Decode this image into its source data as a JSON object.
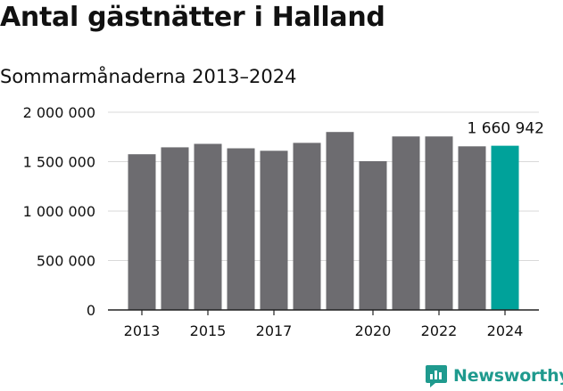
{
  "header": {
    "title": "Antal gästnätter i Halland",
    "subtitle": "Sommarmånaderna 2013–2024"
  },
  "brand": {
    "name": "Newsworthy",
    "color": "#1f9a8e"
  },
  "chart_data": {
    "type": "bar",
    "categories": [
      "2013",
      "2014",
      "2015",
      "2016",
      "2017",
      "2018",
      "2019",
      "2020",
      "2021",
      "2022",
      "2023",
      "2024"
    ],
    "values": [
      1575000,
      1645000,
      1680000,
      1635000,
      1610000,
      1690000,
      1800000,
      1505000,
      1755000,
      1755000,
      1655000,
      1660942
    ],
    "highlight_index": 11,
    "highlight_label": "1 660 942",
    "bar_color": "#6d6c70",
    "highlight_color": "#00a29a",
    "ylim": [
      0,
      2000000
    ],
    "yticks": [
      0,
      500000,
      1000000,
      1500000,
      2000000
    ],
    "ytick_labels": [
      "0",
      "500 000",
      "1 000 000",
      "1 500 000",
      "2 000 000"
    ],
    "xtick_labels": [
      "2013",
      "2015",
      "2017",
      "2020",
      "2022",
      "2024"
    ],
    "xtick_positions": [
      "2013",
      "2015",
      "2017",
      "2020",
      "2022",
      "2024"
    ],
    "grid": true,
    "xlabel": "",
    "ylabel": ""
  }
}
